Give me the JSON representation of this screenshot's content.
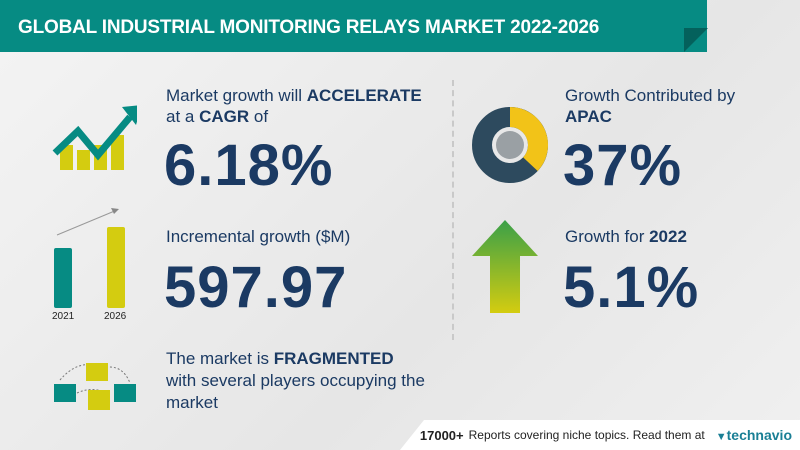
{
  "title": "GLOBAL INDUSTRIAL MONITORING RELAYS MARKET 2022-2026",
  "cagr": {
    "line1_prefix": "Market growth will ",
    "line1_bold": "ACCELERATE",
    "line2_prefix": "at a ",
    "line2_bold": "CAGR",
    "line2_suffix": " of",
    "value": "6.18%"
  },
  "incremental": {
    "label": "Incremental growth ($M)",
    "value": "597.97",
    "bar_years": [
      "2021",
      "2026"
    ]
  },
  "fragmented": {
    "line1_prefix": "The market is ",
    "line1_bold": "FRAGMENTED",
    "line2": "with several players occupying the",
    "line3": "market"
  },
  "region": {
    "label": "Growth Contributed by",
    "region": "APAC",
    "value": "37%",
    "share_percent": 37
  },
  "growth_year": {
    "label": "Growth for ",
    "year": "2022",
    "value": "5.1%"
  },
  "footer": {
    "count": "17000+",
    "text": "Reports covering niche topics. Read them at",
    "brand": "technavio"
  },
  "colors": {
    "teal": "#068b83",
    "yellow": "#d4cc10",
    "navy": "#1b3a63",
    "green": "#3aa048"
  }
}
